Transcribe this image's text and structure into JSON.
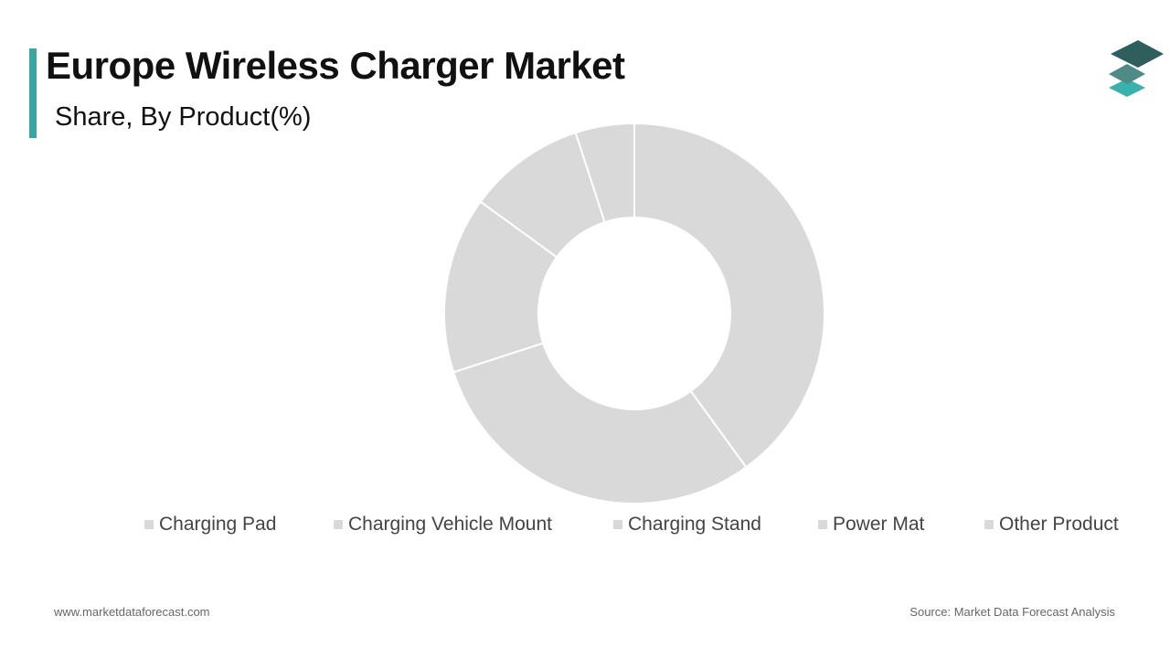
{
  "header": {
    "title": "Europe Wireless Charger Market",
    "subtitle": "Share, By Product(%)"
  },
  "colors": {
    "accent": "#3aa6a2",
    "slice": "#d9d9d9",
    "logo_dark": "#2f5f5c",
    "logo_mid": "#4e8a86",
    "logo_light": "#3bb1ae"
  },
  "chart_data": {
    "type": "pie",
    "donut": true,
    "categories": [
      "Charging Pad",
      "Charging Vehicle Mount",
      "Charging Stand",
      "Power Mat",
      "Other Product"
    ],
    "values": [
      40,
      30,
      15,
      10,
      5
    ],
    "title": "Europe Wireless Charger Market",
    "subtitle": "Share, By Product(%)",
    "legend_position": "bottom"
  },
  "legend": {
    "items": [
      "Charging Pad",
      "Charging Vehicle Mount",
      "Charging Stand",
      "Power Mat",
      "Other Product"
    ]
  },
  "footer": {
    "website": "www.marketdataforecast.com",
    "source": "Source: Market Data Forecast Analysis"
  }
}
